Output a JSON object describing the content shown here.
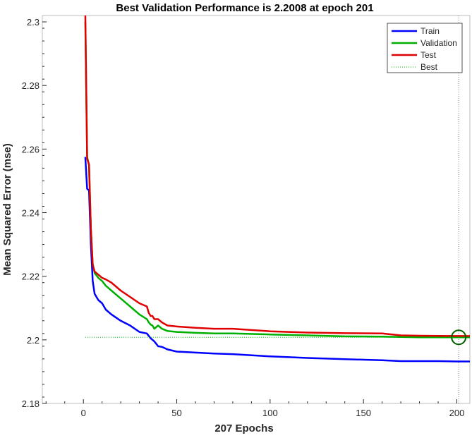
{
  "chart_data": {
    "type": "line",
    "title": "Best Validation Performance is 2.2008 at epoch 201",
    "xlabel": "207 Epochs",
    "ylabel": "Mean Squared Error  (mse)",
    "xlim": [
      -22,
      207
    ],
    "ylim": [
      2.18,
      2.302
    ],
    "xticks": [
      0,
      50,
      100,
      150,
      200
    ],
    "xtick_labels": [
      "0",
      "50",
      "100",
      "150",
      "200"
    ],
    "yticks": [
      2.18,
      2.2,
      2.22,
      2.24,
      2.26,
      2.28,
      2.3
    ],
    "ytick_labels": [
      "2.18",
      "2.2",
      "2.22",
      "2.24",
      "2.26",
      "2.28",
      "2.3"
    ],
    "grid": false,
    "legend_position": "top-right",
    "series": [
      {
        "name": "Train",
        "color": "#0000FF",
        "x": [
          1,
          2,
          3,
          4,
          5,
          6,
          8,
          10,
          12,
          15,
          20,
          25,
          30,
          34,
          36,
          38,
          40,
          42,
          45,
          50,
          60,
          70,
          80,
          100,
          120,
          140,
          160,
          170,
          180,
          190,
          200,
          207
        ],
        "y": [
          2.2575,
          2.2475,
          2.247,
          2.23,
          2.2185,
          2.2145,
          2.2125,
          2.2115,
          2.2095,
          2.208,
          2.206,
          2.2045,
          2.2025,
          2.202,
          2.2005,
          2.1995,
          2.198,
          2.1978,
          2.197,
          2.1963,
          2.196,
          2.1957,
          2.1955,
          2.1948,
          2.1943,
          2.1939,
          2.1936,
          2.1933,
          2.1933,
          2.1933,
          2.1932,
          2.1932
        ]
      },
      {
        "name": "Validation",
        "color": "#00B000",
        "x": [
          1,
          2,
          3,
          4,
          5,
          6,
          8,
          10,
          12,
          15,
          20,
          25,
          30,
          34,
          35,
          36,
          37,
          38,
          40,
          42,
          45,
          50,
          60,
          70,
          80,
          100,
          120,
          140,
          160,
          170,
          180,
          200,
          207
        ],
        "y": [
          2.3,
          2.2575,
          2.255,
          2.235,
          2.224,
          2.221,
          2.2195,
          2.2185,
          2.217,
          2.2155,
          2.213,
          2.2105,
          2.208,
          2.2065,
          2.2055,
          2.2048,
          2.2045,
          2.2035,
          2.2045,
          2.2035,
          2.2028,
          2.2025,
          2.2022,
          2.202,
          2.202,
          2.2017,
          2.2014,
          2.2011,
          2.201,
          2.2009,
          2.2008,
          2.2008,
          2.2008
        ]
      },
      {
        "name": "Test",
        "color": "#E00000",
        "x": [
          1,
          2,
          3,
          4,
          5,
          6,
          8,
          10,
          12,
          15,
          20,
          25,
          30,
          34,
          35,
          36,
          37,
          38,
          40,
          42,
          45,
          50,
          60,
          70,
          80,
          100,
          120,
          140,
          160,
          170,
          180,
          200,
          207
        ],
        "y": [
          2.303,
          2.257,
          2.255,
          2.235,
          2.2235,
          2.2215,
          2.2205,
          2.2195,
          2.219,
          2.218,
          2.2155,
          2.2135,
          2.2115,
          2.2105,
          2.2085,
          2.2075,
          2.2075,
          2.2065,
          2.2065,
          2.2055,
          2.2045,
          2.2042,
          2.2038,
          2.2035,
          2.2035,
          2.2027,
          2.2023,
          2.2021,
          2.202,
          2.2014,
          2.2013,
          2.2012,
          2.2012
        ]
      },
      {
        "name": "Best",
        "color": "#00B000",
        "style": "dotted",
        "y_constant": 2.2008,
        "x_range": [
          1,
          201
        ]
      }
    ],
    "best_marker": {
      "x": 201,
      "y": 2.2008,
      "color": "#006000"
    },
    "best_epoch_line": {
      "x": 201,
      "color": "#808080"
    }
  }
}
